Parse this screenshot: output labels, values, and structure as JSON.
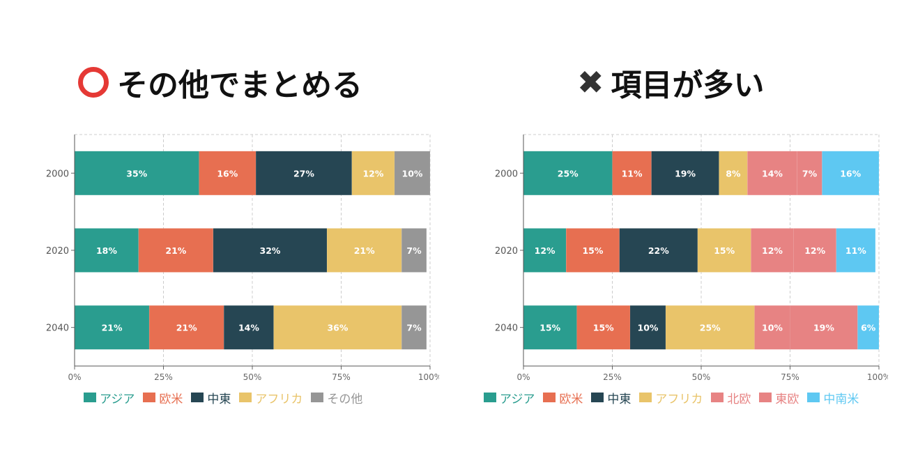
{
  "headings": {
    "left": {
      "mark_icon": "red-circle-icon",
      "text": "その他でまとめる"
    },
    "right": {
      "mark_icon": "cross-icon",
      "text": "項目が多い"
    }
  },
  "chart_data": [
    {
      "type": "bar",
      "orientation": "horizontal",
      "stacked": true,
      "categories": [
        "2000",
        "2020",
        "2040"
      ],
      "xlim": [
        0,
        100
      ],
      "x_ticks": [
        "0%",
        "25%",
        "50%",
        "75%",
        "100%"
      ],
      "grid": true,
      "legend_position": "bottom",
      "series": [
        {
          "name": "アジア",
          "color": "#2a9d8f",
          "values": [
            35,
            18,
            21
          ]
        },
        {
          "name": "欧米",
          "color": "#e76f51",
          "values": [
            16,
            21,
            21
          ]
        },
        {
          "name": "中東",
          "color": "#264653",
          "values": [
            27,
            32,
            14
          ]
        },
        {
          "name": "アフリカ",
          "color": "#e9c46a",
          "values": [
            12,
            21,
            36
          ]
        },
        {
          "name": "その他",
          "color": "#969696",
          "values": [
            10,
            7,
            7
          ]
        }
      ]
    },
    {
      "type": "bar",
      "orientation": "horizontal",
      "stacked": true,
      "categories": [
        "2000",
        "2020",
        "2040"
      ],
      "xlim": [
        0,
        100
      ],
      "x_ticks": [
        "0%",
        "25%",
        "50%",
        "75%",
        "100%"
      ],
      "grid": true,
      "legend_position": "bottom",
      "series": [
        {
          "name": "アジア",
          "color": "#2a9d8f",
          "values": [
            25,
            12,
            15
          ]
        },
        {
          "name": "欧米",
          "color": "#e76f51",
          "values": [
            11,
            15,
            15
          ]
        },
        {
          "name": "中東",
          "color": "#264653",
          "values": [
            19,
            22,
            10
          ]
        },
        {
          "name": "アフリカ",
          "color": "#e9c46a",
          "values": [
            8,
            15,
            25
          ]
        },
        {
          "name": "北欧",
          "color": "#e78383",
          "values": [
            14,
            12,
            10
          ]
        },
        {
          "name": "東欧",
          "color": "#e78383",
          "values": [
            7,
            12,
            19
          ]
        },
        {
          "name": "中南米",
          "color": "#5ec8f2",
          "values": [
            16,
            11,
            6
          ]
        }
      ]
    }
  ]
}
